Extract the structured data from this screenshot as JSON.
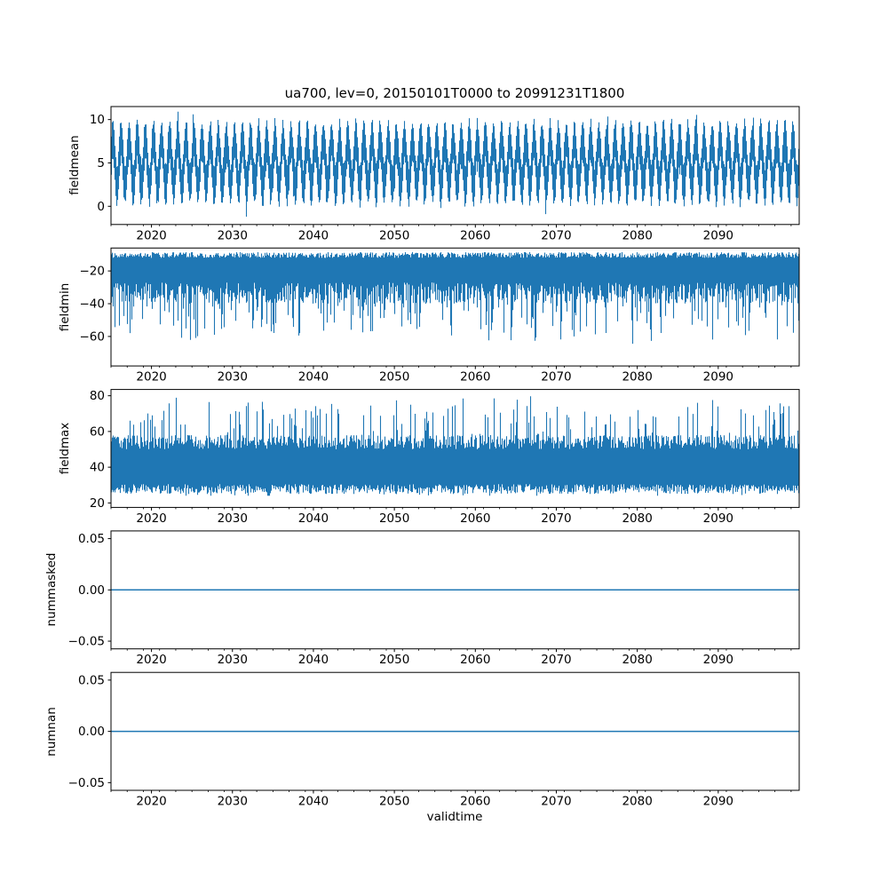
{
  "figure": {
    "title": "ua700, lev=0, 20150101T0000 to 20991231T1800",
    "background": "#ffffff",
    "axis_color": "#000000",
    "line_color": "#1f77b4"
  },
  "chart_data": [
    {
      "type": "line",
      "name": "fieldmean",
      "ylabel": "fieldmean",
      "xlabel": "",
      "x_range": [
        2015,
        2100
      ],
      "xticks": [
        2020,
        2030,
        2040,
        2050,
        2060,
        2070,
        2080,
        2090
      ],
      "xticklabels": [
        "2020",
        "2030",
        "2040",
        "2050",
        "2060",
        "2070",
        "2080",
        "2090"
      ],
      "x_minor_step": 2,
      "ylim": [
        -2.1,
        11.5
      ],
      "yticks": [
        0,
        5,
        10
      ],
      "yticklabels": [
        "0",
        "5",
        "10"
      ],
      "grid": false,
      "legend": "none",
      "data_summary": {
        "pattern": "dense high-frequency noise with annual oscillation, 2015-2100",
        "mean_level": 5.0,
        "typical_band": [
          1.5,
          9.5
        ],
        "extreme_min": -1.5,
        "extreme_max": 11.2
      },
      "synthesis": {
        "kind": "seasonal",
        "seed": 11,
        "mean": 5.0,
        "seasonal_amp": 2.6,
        "half_width": 1.7,
        "jitter": 0.9,
        "spike_prob": 0.025,
        "spike_extra": 1.6,
        "clip": [
          -1.6,
          11.3
        ]
      }
    },
    {
      "type": "line",
      "name": "fieldmin",
      "ylabel": "fieldmin",
      "xlabel": "",
      "x_range": [
        2015,
        2100
      ],
      "xticks": [
        2020,
        2030,
        2040,
        2050,
        2060,
        2070,
        2080,
        2090
      ],
      "xticklabels": [
        "2020",
        "2030",
        "2040",
        "2050",
        "2060",
        "2070",
        "2080",
        "2090"
      ],
      "x_minor_step": 2,
      "ylim": [
        -78,
        -6
      ],
      "yticks": [
        -60,
        -40,
        -20
      ],
      "yticklabels": [
        "−60",
        "−40",
        "−20"
      ],
      "grid": false,
      "legend": "none",
      "data_summary": {
        "pattern": "dense noise band near top with frequent deep downward spikes",
        "upper_edge": [
          -12,
          -8.5
        ],
        "typical_band": [
          -40,
          -9
        ],
        "extreme_min": -75
      },
      "synthesis": {
        "kind": "band",
        "seed": 22,
        "hi": {
          "base": -12,
          "jitter": 3.5,
          "spike_prob": 0.0,
          "spike_extra": 0
        },
        "lo": {
          "base": -27,
          "jitter": -13,
          "spike_prob": 0.25,
          "spike_extra": -26
        },
        "clip": [
          -75,
          -7.2
        ]
      }
    },
    {
      "type": "line",
      "name": "fieldmax",
      "ylabel": "fieldmax",
      "xlabel": "",
      "x_range": [
        2015,
        2100
      ],
      "xticks": [
        2020,
        2030,
        2040,
        2050,
        2060,
        2070,
        2080,
        2090
      ],
      "xticklabels": [
        "2020",
        "2030",
        "2040",
        "2050",
        "2060",
        "2070",
        "2080",
        "2090"
      ],
      "x_minor_step": 2,
      "ylim": [
        17.5,
        83.5
      ],
      "yticks": [
        20,
        40,
        60,
        80
      ],
      "yticklabels": [
        "20",
        "40",
        "60",
        "80"
      ],
      "grid": false,
      "legend": "none",
      "data_summary": {
        "pattern": "dense noise band with frequent upward spikes",
        "typical_band": [
          27,
          55
        ],
        "extreme_max": 80,
        "extreme_min": 24
      },
      "synthesis": {
        "kind": "band",
        "seed": 33,
        "hi": {
          "base": 50,
          "jitter": 8,
          "spike_prob": 0.2,
          "spike_extra": 22
        },
        "lo": {
          "base": 30.5,
          "jitter": -5.5,
          "spike_prob": 0.1,
          "spike_extra": -2.5
        },
        "clip": [
          24,
          80.5
        ]
      }
    },
    {
      "type": "line",
      "name": "nummasked",
      "ylabel": "nummasked",
      "xlabel": "",
      "x_range": [
        2015,
        2100
      ],
      "xticks": [
        2020,
        2030,
        2040,
        2050,
        2060,
        2070,
        2080,
        2090
      ],
      "xticklabels": [
        "2020",
        "2030",
        "2040",
        "2050",
        "2060",
        "2070",
        "2080",
        "2090"
      ],
      "x_minor_step": 2,
      "ylim": [
        -0.0575,
        0.0575
      ],
      "yticks": [
        -0.05,
        0.0,
        0.05
      ],
      "yticklabels": [
        "−0.05",
        "0.00",
        "0.05"
      ],
      "grid": false,
      "legend": "none",
      "data_summary": {
        "pattern": "constant zero line across full range",
        "constant_value": 0
      },
      "synthesis": {
        "kind": "constant",
        "value": 0
      }
    },
    {
      "type": "line",
      "name": "numnan",
      "ylabel": "numnan",
      "xlabel": "validtime",
      "x_range": [
        2015,
        2100
      ],
      "xticks": [
        2020,
        2030,
        2040,
        2050,
        2060,
        2070,
        2080,
        2090
      ],
      "xticklabels": [
        "2020",
        "2030",
        "2040",
        "2050",
        "2060",
        "2070",
        "2080",
        "2090"
      ],
      "x_minor_step": 2,
      "ylim": [
        -0.0575,
        0.0575
      ],
      "yticks": [
        -0.05,
        0.0,
        0.05
      ],
      "yticklabels": [
        "−0.05",
        "0.00",
        "0.05"
      ],
      "grid": false,
      "legend": "none",
      "data_summary": {
        "pattern": "constant zero line across full range",
        "constant_value": 0
      },
      "synthesis": {
        "kind": "constant",
        "value": 0
      }
    }
  ]
}
